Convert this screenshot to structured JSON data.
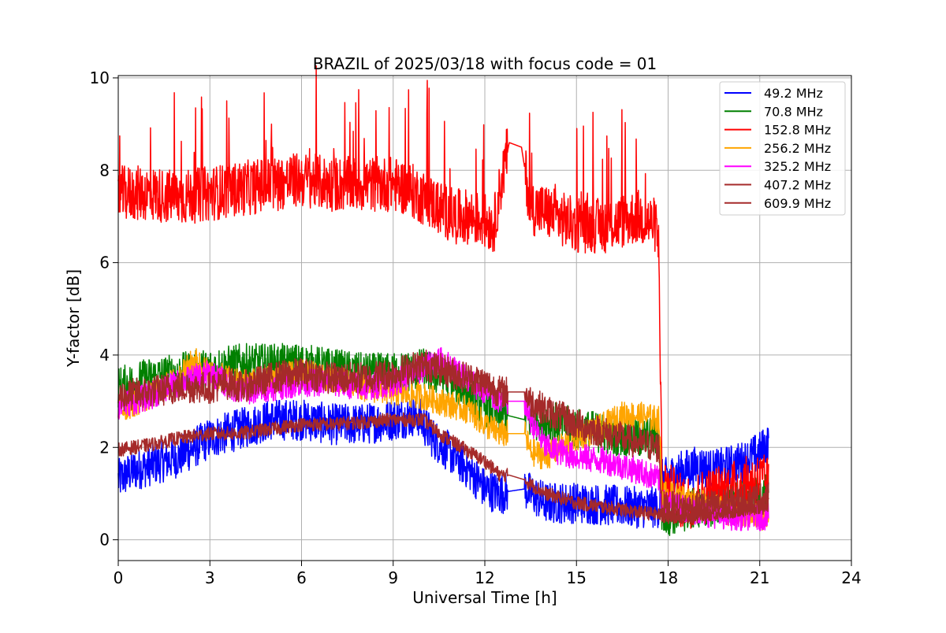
{
  "chart_data": {
    "type": "line",
    "title": "BRAZIL of 2025/03/18 with focus code = 01",
    "xlabel": "Universal Time [h]",
    "ylabel": "Y-factor [dB]",
    "xlim": [
      0,
      24
    ],
    "ylim": [
      -0.45,
      10.05
    ],
    "xticks": [
      0,
      3,
      6,
      9,
      12,
      15,
      18,
      21,
      24
    ],
    "yticks": [
      0,
      2,
      4,
      6,
      8,
      10
    ],
    "grid": true,
    "legend_position": "top-right",
    "series": [
      {
        "name": " 49.2 MHz",
        "color": "#0000ff",
        "noise": 0.45,
        "x": [
          0,
          0.5,
          1,
          1.5,
          2,
          2.5,
          3,
          4,
          5,
          6,
          7,
          8,
          9,
          9.8,
          10.3,
          11,
          11.5,
          12,
          12.5,
          12.8,
          13.3,
          13.5,
          14,
          15,
          16,
          17,
          17.7,
          17.8,
          18.5,
          19,
          19.5,
          20,
          20.5,
          21,
          21.3
        ],
        "y": [
          1.3,
          1.5,
          1.6,
          1.7,
          1.8,
          2.0,
          2.2,
          2.4,
          2.6,
          2.6,
          2.5,
          2.5,
          2.6,
          2.7,
          2.2,
          1.8,
          1.5,
          1.1,
          1.0,
          1.05,
          1.1,
          1.0,
          0.8,
          0.8,
          0.75,
          0.7,
          0.7,
          1.3,
          1.5,
          1.6,
          1.5,
          1.6,
          1.7,
          1.9,
          2.1
        ]
      },
      {
        "name": " 70.8 MHz",
        "color": "#008000",
        "noise": 0.45,
        "x": [
          0,
          1,
          2,
          3,
          4,
          5,
          6,
          7,
          8,
          9,
          10,
          11,
          12,
          12.7,
          13.3,
          14,
          15,
          16,
          17,
          17.7,
          17.8,
          18.5,
          19,
          20,
          21,
          21.3
        ],
        "y": [
          3.3,
          3.5,
          3.6,
          3.7,
          3.8,
          3.8,
          3.8,
          3.7,
          3.6,
          3.6,
          3.7,
          3.4,
          2.9,
          2.7,
          2.6,
          2.6,
          2.4,
          2.3,
          2.2,
          2.2,
          0.5,
          0.6,
          0.7,
          0.8,
          0.9,
          1.0
        ]
      },
      {
        "name": " 152.8 MHz",
        "color": "#ff0000",
        "noise": 0.6,
        "spikes": true,
        "x": [
          0,
          1,
          2,
          3,
          4,
          5,
          6,
          7,
          8,
          9,
          9.5,
          10,
          10.5,
          11,
          11.5,
          12,
          12.3,
          12.5,
          12.8,
          13.2,
          13.5,
          14,
          15,
          16,
          17,
          17.6,
          17.7,
          17.8,
          18.5,
          19,
          19.5,
          20,
          20.5,
          21,
          21.3
        ],
        "y": [
          7.5,
          7.5,
          7.4,
          7.5,
          7.6,
          7.7,
          7.8,
          7.7,
          7.7,
          7.7,
          7.6,
          7.4,
          7.2,
          7.0,
          7.0,
          6.9,
          6.8,
          7.6,
          8.6,
          8.5,
          7.2,
          7.1,
          6.8,
          6.8,
          7.0,
          6.8,
          6.3,
          1.2,
          0.8,
          0.9,
          1.0,
          1.1,
          1.2,
          1.3,
          1.2
        ]
      },
      {
        "name": " 256.2 MHz",
        "color": "#ffa500",
        "noise": 0.3,
        "x": [
          0,
          1,
          2,
          2.5,
          3,
          4,
          5,
          6,
          7,
          8,
          9,
          10,
          10.5,
          11,
          11.5,
          12,
          12.5,
          12.8,
          13.3,
          13.5,
          14,
          15,
          16,
          16.5,
          17,
          17.7,
          17.8,
          18.5,
          19,
          20,
          21,
          21.3
        ],
        "y": [
          2.8,
          3.1,
          3.5,
          3.9,
          3.6,
          3.4,
          3.5,
          3.6,
          3.5,
          3.3,
          3.2,
          3.1,
          3.0,
          2.9,
          2.8,
          2.5,
          2.3,
          2.3,
          2.3,
          1.9,
          1.8,
          2.2,
          2.5,
          2.7,
          2.7,
          2.6,
          1.0,
          0.9,
          0.8,
          0.6,
          0.5,
          0.5
        ]
      },
      {
        "name": " 325.2 MHz",
        "color": "#ff00ff",
        "noise": 0.3,
        "x": [
          0,
          1,
          2,
          3,
          4,
          5,
          6,
          7,
          8,
          9,
          10,
          10.5,
          11,
          12,
          12.5,
          12.8,
          13.3,
          13.5,
          14,
          15,
          16,
          17,
          17.7,
          17.8,
          18.5,
          19,
          20,
          21,
          21.3
        ],
        "y": [
          2.9,
          3.1,
          3.4,
          3.6,
          3.2,
          3.3,
          3.4,
          3.4,
          3.3,
          3.4,
          3.7,
          3.9,
          3.7,
          3.2,
          3.0,
          3.0,
          3.0,
          2.6,
          2.0,
          1.8,
          1.7,
          1.5,
          1.3,
          0.8,
          0.7,
          0.6,
          0.5,
          0.5,
          0.5
        ]
      },
      {
        "name": " 407.2 MHz",
        "color": "#a52a2a",
        "noise": 0.35,
        "x": [
          0,
          1,
          2,
          3,
          3.7,
          4,
          5,
          6,
          7,
          8,
          9,
          10,
          11,
          12,
          12.5,
          12.8,
          13.3,
          13.5,
          14,
          15,
          16,
          17,
          17.7,
          17.8,
          18.5,
          19,
          20,
          21,
          21.3
        ],
        "y": [
          3.1,
          3.2,
          3.3,
          3.3,
          3.4,
          3.3,
          3.5,
          3.6,
          3.5,
          3.5,
          3.6,
          3.8,
          3.6,
          3.4,
          3.2,
          3.2,
          3.2,
          3.0,
          2.8,
          2.5,
          2.3,
          2.1,
          2.0,
          0.7,
          0.7,
          0.7,
          0.8,
          0.9,
          0.9
        ]
      },
      {
        "name": " 609.9 MHz",
        "color": "#a52a2a",
        "noise": 0.15,
        "x": [
          0,
          1,
          2,
          3,
          4,
          5,
          6,
          7,
          8,
          9,
          10,
          10.5,
          11,
          12,
          12.5,
          12.8,
          13.3,
          13.5,
          14,
          15,
          16,
          17,
          17.7,
          17.8,
          18.5,
          19,
          20,
          21,
          21.3
        ],
        "y": [
          1.95,
          2.05,
          2.2,
          2.3,
          2.3,
          2.4,
          2.5,
          2.5,
          2.55,
          2.6,
          2.6,
          2.3,
          2.1,
          1.7,
          1.4,
          1.4,
          1.3,
          1.2,
          1.0,
          0.8,
          0.7,
          0.6,
          0.55,
          0.5,
          0.5,
          0.55,
          0.6,
          0.7,
          0.8
        ]
      }
    ]
  }
}
